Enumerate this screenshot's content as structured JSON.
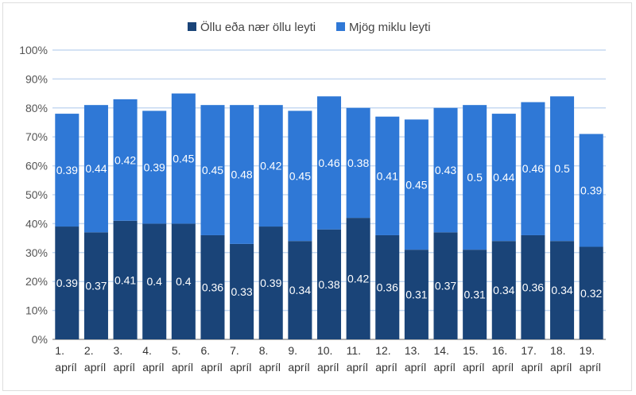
{
  "chart_data": {
    "type": "bar",
    "stacked": true,
    "title": "",
    "xlabel": "",
    "ylabel": "",
    "ylim": [
      0,
      1
    ],
    "y_ticks": [
      "0%",
      "10%",
      "20%",
      "30%",
      "40%",
      "50%",
      "60%",
      "70%",
      "80%",
      "90%",
      "100%"
    ],
    "grid": true,
    "legend_position": "top",
    "categories": [
      [
        "1.",
        "apríl"
      ],
      [
        "2.",
        "apríl"
      ],
      [
        "3.",
        "apríl"
      ],
      [
        "4.",
        "apríl"
      ],
      [
        "5.",
        "apríl"
      ],
      [
        "6.",
        "apríl"
      ],
      [
        "7.",
        "apríl"
      ],
      [
        "8.",
        "apríl"
      ],
      [
        "9.",
        "apríl"
      ],
      [
        "10.",
        "apríl"
      ],
      [
        "11.",
        "apríl"
      ],
      [
        "12.",
        "apríl"
      ],
      [
        "13.",
        "apríl"
      ],
      [
        "14.",
        "apríl"
      ],
      [
        "15.",
        "apríl"
      ],
      [
        "16.",
        "apríl"
      ],
      [
        "17.",
        "apríl"
      ],
      [
        "18.",
        "apríl"
      ],
      [
        "19.",
        "apríl"
      ]
    ],
    "series": [
      {
        "name": "Öllu eða nær öllu leyti",
        "color": "#1a4478",
        "values": [
          0.39,
          0.37,
          0.41,
          0.4,
          0.4,
          0.36,
          0.33,
          0.39,
          0.34,
          0.38,
          0.42,
          0.36,
          0.31,
          0.37,
          0.31,
          0.34,
          0.36,
          0.34,
          0.32
        ]
      },
      {
        "name": "Mjög miklu leyti",
        "color": "#2f78d6",
        "values": [
          0.39,
          0.44,
          0.42,
          0.39,
          0.45,
          0.45,
          0.48,
          0.42,
          0.45,
          0.46,
          0.38,
          0.41,
          0.45,
          0.43,
          0.5,
          0.44,
          0.46,
          0.5,
          0.39
        ]
      }
    ],
    "gridline_color": "#c6d9f1"
  }
}
